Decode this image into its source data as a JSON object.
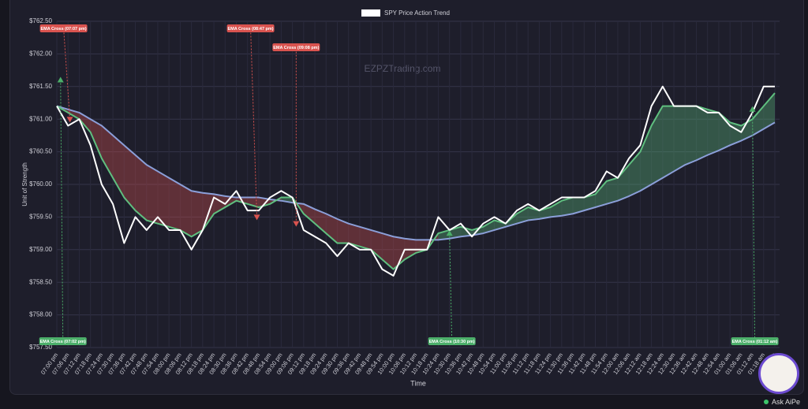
{
  "chart_data": {
    "type": "line",
    "title": "SPY Price Action Trend",
    "watermark": "EZPZTrading.com",
    "y_label": "Unit of Strength",
    "x_label": "Time",
    "categories": [
      "07:00 pm",
      "07:06 pm",
      "07:12 pm",
      "07:18 pm",
      "07:24 pm",
      "07:30 pm",
      "07:36 pm",
      "07:42 pm",
      "07:48 pm",
      "07:54 pm",
      "08:00 pm",
      "08:06 pm",
      "08:12 pm",
      "08:18 pm",
      "08:24 pm",
      "08:30 pm",
      "08:36 pm",
      "08:42 pm",
      "08:48 pm",
      "08:54 pm",
      "09:00 pm",
      "09:06 pm",
      "09:12 pm",
      "09:18 pm",
      "09:24 pm",
      "09:30 pm",
      "09:36 pm",
      "09:42 pm",
      "09:48 pm",
      "09:54 pm",
      "10:00 pm",
      "10:06 pm",
      "10:12 pm",
      "10:18 pm",
      "10:24 pm",
      "10:30 pm",
      "10:36 pm",
      "10:42 pm",
      "10:48 pm",
      "10:54 pm",
      "11:00 pm",
      "11:06 pm",
      "11:12 pm",
      "11:18 pm",
      "11:24 pm",
      "11:30 pm",
      "11:36 pm",
      "11:42 pm",
      "11:48 pm",
      "11:54 pm",
      "12:00 am",
      "12:06 am",
      "12:12 am",
      "12:18 am",
      "12:24 am",
      "12:30 am",
      "12:36 am",
      "12:42 am",
      "12:48 am",
      "12:54 am",
      "01:00 am",
      "01:06 am",
      "01:12 am",
      "01:18 am",
      "01:24 am"
    ],
    "series": [
      {
        "name": "SPY Price Action Trend",
        "color": "#ffffff",
        "values": [
          761.2,
          760.9,
          761.0,
          760.6,
          760.0,
          759.7,
          759.1,
          759.5,
          759.3,
          759.5,
          759.3,
          759.3,
          759.0,
          759.3,
          759.8,
          759.7,
          759.9,
          759.6,
          759.6,
          759.8,
          759.9,
          759.8,
          759.3,
          759.2,
          759.1,
          758.9,
          759.1,
          759.0,
          759.0,
          758.7,
          758.6,
          759.0,
          759.0,
          759.0,
          759.5,
          759.3,
          759.4,
          759.2,
          759.4,
          759.5,
          759.4,
          759.6,
          759.7,
          759.6,
          759.7,
          759.8,
          759.8,
          759.8,
          759.9,
          760.2,
          760.1,
          760.4,
          760.6,
          761.2,
          761.5,
          761.2,
          761.2,
          761.2,
          761.1,
          761.1,
          760.9,
          760.8,
          761.1,
          761.5,
          761.5
        ]
      },
      {
        "color": "#5fbf7f",
        "values": [
          761.2,
          761.1,
          761.0,
          760.8,
          760.4,
          760.1,
          759.8,
          759.6,
          759.45,
          759.4,
          759.35,
          759.3,
          759.2,
          759.3,
          759.55,
          759.65,
          759.75,
          759.7,
          759.65,
          759.7,
          759.8,
          759.8,
          759.55,
          759.4,
          759.25,
          759.1,
          759.1,
          759.05,
          759.0,
          758.85,
          758.7,
          758.85,
          758.95,
          759.0,
          759.25,
          759.3,
          759.35,
          759.3,
          759.35,
          759.45,
          759.4,
          759.55,
          759.65,
          759.6,
          759.65,
          759.75,
          759.8,
          759.8,
          759.85,
          760.05,
          760.1,
          760.3,
          760.5,
          760.9,
          761.2,
          761.2,
          761.2,
          761.2,
          761.15,
          761.1,
          760.95,
          760.9,
          761.0,
          761.2,
          761.4
        ]
      },
      {
        "color": "#8b9fd9",
        "values": [
          761.2,
          761.15,
          761.1,
          761.0,
          760.9,
          760.75,
          760.6,
          760.45,
          760.3,
          760.2,
          760.1,
          760.0,
          759.9,
          759.87,
          759.85,
          759.82,
          759.8,
          759.8,
          759.8,
          759.77,
          759.75,
          759.72,
          759.7,
          759.62,
          759.55,
          759.47,
          759.4,
          759.35,
          759.3,
          759.25,
          759.2,
          759.17,
          759.15,
          759.15,
          759.15,
          759.17,
          759.2,
          759.22,
          759.25,
          759.3,
          759.35,
          759.4,
          759.45,
          759.47,
          759.5,
          759.52,
          759.55,
          759.6,
          759.65,
          759.7,
          759.75,
          759.82,
          759.9,
          760.0,
          760.1,
          760.2,
          760.3,
          760.37,
          760.45,
          760.52,
          760.6,
          760.67,
          760.75,
          760.85,
          760.95
        ]
      }
    ],
    "up_color": "#5fbf7f",
    "down_color": "#d9534f",
    "ylim": [
      757.5,
      762.5
    ],
    "yticks": [
      {
        "value": 757.5,
        "label": "$757.50"
      },
      {
        "value": 758,
        "label": "$758.00"
      },
      {
        "value": 758.5,
        "label": "$758.50"
      },
      {
        "value": 759,
        "label": "$759.00"
      },
      {
        "value": 759.5,
        "label": "$759.50"
      },
      {
        "value": 760,
        "label": "$760.00"
      },
      {
        "value": 760.5,
        "label": "$760.50"
      },
      {
        "value": 761,
        "label": "$761.00"
      },
      {
        "value": 761.5,
        "label": "$761.50"
      },
      {
        "value": 762,
        "label": "$762.00"
      },
      {
        "value": 762.5,
        "label": "$762.50"
      }
    ],
    "grid": true,
    "legend": "top",
    "annotations": [
      {
        "label": "EMA Cross (07:07 pm)",
        "y": 761.0,
        "color": "#d9534f",
        "position": "top"
      },
      {
        "label": "EMA Cross (08:47 pm)",
        "y": 759.5,
        "color": "#d9534f",
        "position": "top"
      },
      {
        "label": "EMA Cross (09:08 pm)",
        "y": 759.4,
        "color": "#d9534f",
        "position": "top"
      },
      {
        "label": "EMA Cross (07:02 pm)",
        "y": 761.6,
        "color": "#4caf6a",
        "position": "bottom"
      },
      {
        "label": "EMA Cross (10:30 pm)",
        "y": 759.25,
        "color": "#4caf6a",
        "position": "bottom"
      },
      {
        "label": "EMA Cross (01:12 am)",
        "y": 761.15,
        "color": "#4caf6a",
        "position": "bottom"
      }
    ]
  },
  "assistant": {
    "label": "Ask AiPe"
  }
}
